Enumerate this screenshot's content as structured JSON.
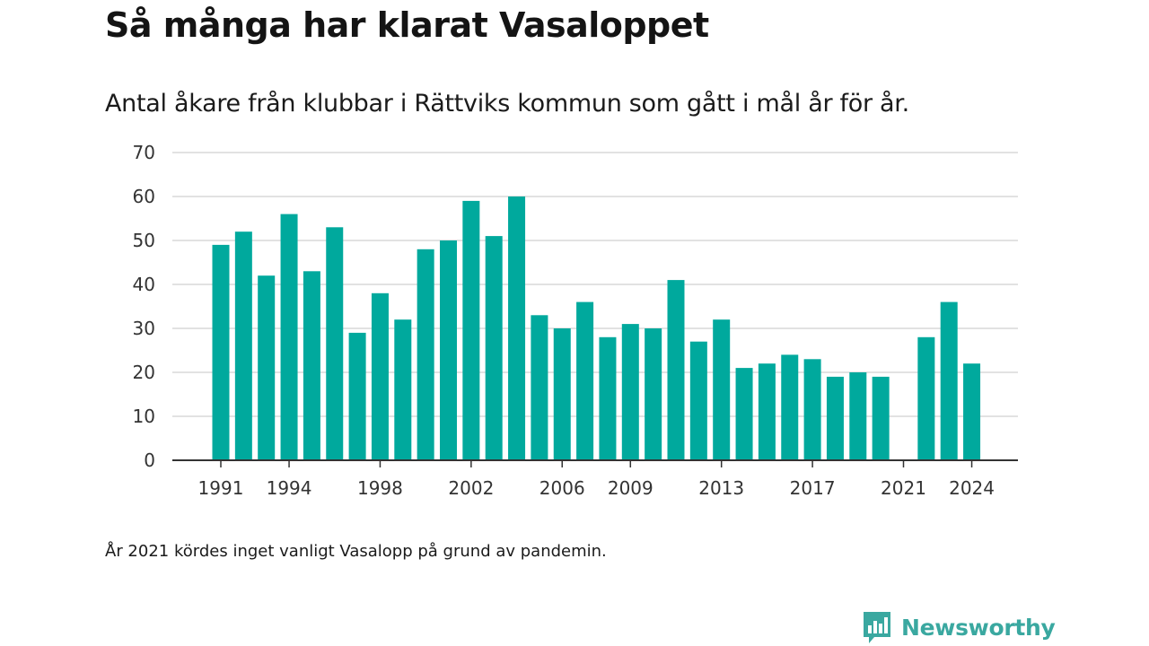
{
  "header": {
    "title": "Så många har klarat Vasaloppet",
    "subtitle": "Antal åkare från klubbar i Rättviks kommun som gått i mål år för år."
  },
  "footer": {
    "note": "År 2021 kördes inget vanligt Vasalopp på grund av pandemin.",
    "brand": "Newsworthy"
  },
  "colors": {
    "bar": "#00a99d",
    "grid": "#d9d9d9",
    "axis": "#333333",
    "brand": "#3aa8a0"
  },
  "chart_data": {
    "type": "bar",
    "x": [
      1991,
      1992,
      1993,
      1994,
      1995,
      1996,
      1997,
      1998,
      1999,
      2000,
      2001,
      2002,
      2003,
      2004,
      2005,
      2006,
      2007,
      2008,
      2009,
      2010,
      2011,
      2012,
      2013,
      2014,
      2015,
      2016,
      2017,
      2018,
      2019,
      2020,
      2021,
      2022,
      2023,
      2024
    ],
    "values": [
      49,
      52,
      42,
      56,
      43,
      53,
      29,
      38,
      32,
      48,
      50,
      59,
      51,
      60,
      33,
      30,
      36,
      28,
      31,
      30,
      41,
      27,
      32,
      21,
      22,
      24,
      23,
      19,
      20,
      19,
      null,
      28,
      36,
      22
    ],
    "x_tick_labels": [
      "1991",
      "1994",
      "1998",
      "2002",
      "2006",
      "2009",
      "2013",
      "2017",
      "2021",
      "2024"
    ],
    "y_ticks": [
      "0",
      "10",
      "20",
      "30",
      "40",
      "50",
      "60",
      "70"
    ],
    "ylim": [
      0,
      70
    ],
    "xlabel": "",
    "ylabel": "",
    "grid": true,
    "legend": "none"
  }
}
